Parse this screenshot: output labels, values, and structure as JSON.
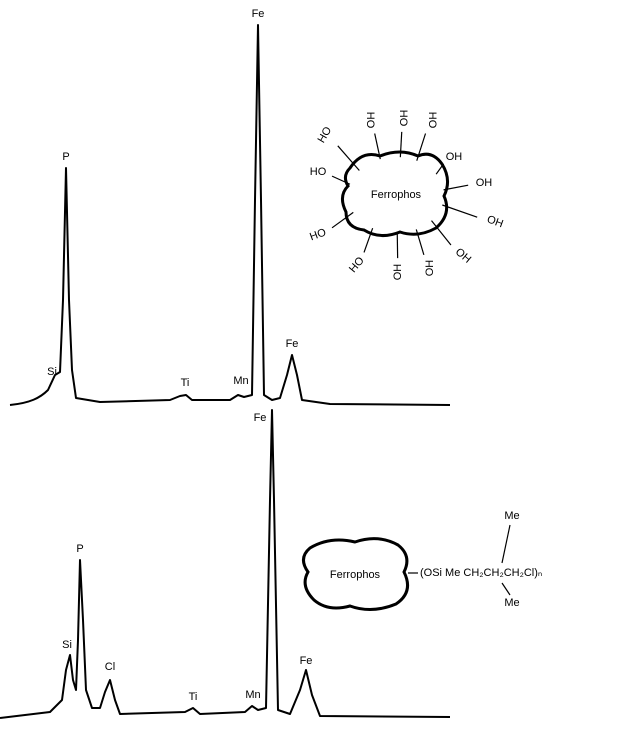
{
  "top_spectrum": {
    "peaks": [
      "Si",
      "P",
      "Ti",
      "Mn",
      "Fe",
      "Fe"
    ]
  },
  "bottom_spectrum": {
    "peaks": [
      "Fe",
      "P",
      "Si",
      "Cl",
      "Ti",
      "Mn",
      "Fe"
    ]
  },
  "top_particle": {
    "label": "Ferrophos",
    "groups": [
      "HO",
      "HO",
      "HO",
      "HO",
      "OH",
      "OH",
      "OH",
      "OH",
      "OH",
      "OH",
      "HO",
      "HO",
      "HO"
    ]
  },
  "bottom_particle": {
    "label": "Ferrophos",
    "methyl_top": "Me",
    "chain": "(OSi Me CH₂CH₂CH₂Cl)ₙ",
    "methyl_bottom": "Me"
  }
}
